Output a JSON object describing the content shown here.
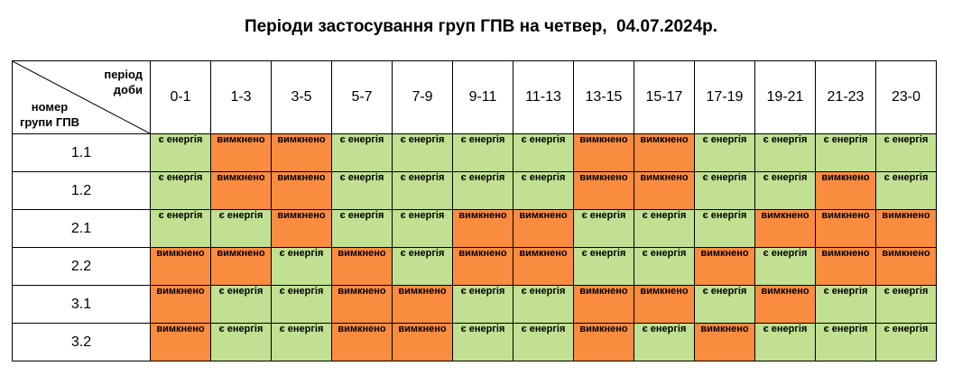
{
  "title": "Періоди застосування груп ГПВ на четвер,  04.07.2024р.",
  "header": {
    "period_label": "період\nдоби",
    "group_label": "номер\nгрупи ГПВ",
    "periods": [
      "0-1",
      "1-3",
      "3-5",
      "5-7",
      "7-9",
      "9-11",
      "11-13",
      "13-15",
      "15-17",
      "17-19",
      "19-21",
      "21-23",
      "23-0"
    ]
  },
  "status_labels": {
    "on": "є енергія",
    "off": "вимкнено"
  },
  "colors": {
    "on": "#c1e092",
    "off": "#fa8c3f"
  },
  "rows": [
    {
      "group": "1.1",
      "status": [
        "on",
        "off",
        "off",
        "on",
        "on",
        "on",
        "on",
        "off",
        "off",
        "on",
        "on",
        "on",
        "on"
      ]
    },
    {
      "group": "1.2",
      "status": [
        "on",
        "off",
        "off",
        "on",
        "on",
        "on",
        "on",
        "off",
        "off",
        "on",
        "on",
        "off",
        "on"
      ]
    },
    {
      "group": "2.1",
      "status": [
        "on",
        "on",
        "off",
        "on",
        "on",
        "off",
        "off",
        "on",
        "on",
        "on",
        "off",
        "off",
        "off"
      ]
    },
    {
      "group": "2.2",
      "status": [
        "off",
        "off",
        "on",
        "off",
        "on",
        "off",
        "off",
        "on",
        "on",
        "off",
        "on",
        "off",
        "off"
      ]
    },
    {
      "group": "3.1",
      "status": [
        "off",
        "on",
        "on",
        "off",
        "off",
        "on",
        "on",
        "off",
        "off",
        "on",
        "off",
        "on",
        "on"
      ]
    },
    {
      "group": "3.2",
      "status": [
        "off",
        "on",
        "on",
        "off",
        "off",
        "on",
        "on",
        "off",
        "on",
        "off",
        "on",
        "on",
        "on"
      ]
    }
  ]
}
